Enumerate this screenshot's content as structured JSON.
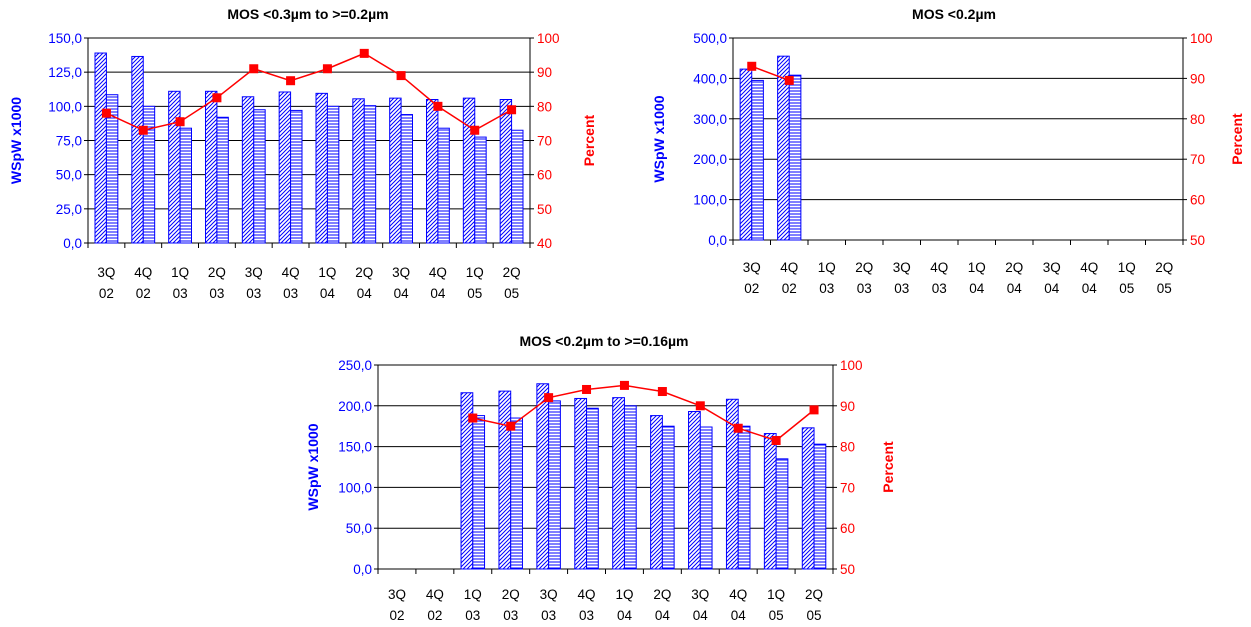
{
  "colors": {
    "bar_stroke": "#0000ff",
    "bar_fill": "#ffffff",
    "line": "#ff0000",
    "marker": "#ff0000",
    "axis": "#000000",
    "grid": "#000000"
  },
  "chart_data": [
    {
      "type": "bar",
      "title": "MOS <0.3µm to >=0.2µm",
      "ylabel": "WSpW x1000",
      "y2label": "Percent",
      "ylim": [
        0,
        150
      ],
      "yticks": [
        "0,0",
        "25,0",
        "50,0",
        "75,0",
        "100,0",
        "125,0",
        "150,0"
      ],
      "y2lim": [
        40,
        100
      ],
      "y2ticks": [
        "40",
        "50",
        "60",
        "70",
        "80",
        "90",
        "100"
      ],
      "categories": [
        "3Q 02",
        "4Q 02",
        "1Q 03",
        "2Q 03",
        "3Q 03",
        "4Q 03",
        "1Q 04",
        "2Q 04",
        "3Q 04",
        "4Q 04",
        "1Q 05",
        "2Q 05"
      ],
      "grid": true,
      "series": [
        {
          "kind": "bar",
          "pattern": "diagonal",
          "values": [
            139,
            136.5,
            111,
            111,
            107,
            110.5,
            109.5,
            105.5,
            106,
            105,
            106,
            105
          ]
        },
        {
          "kind": "bar",
          "pattern": "horizontal",
          "values": [
            108.5,
            100,
            84,
            92,
            97.5,
            97,
            100,
            100.5,
            94,
            84,
            77.5,
            82.5
          ]
        },
        {
          "kind": "line",
          "axis": "right",
          "values": [
            78,
            73,
            75.5,
            82.5,
            91,
            87.5,
            91,
            95.5,
            89,
            80,
            73,
            79
          ]
        }
      ]
    },
    {
      "type": "bar",
      "title": "MOS <0.2µm",
      "ylabel": "WSpW x1000",
      "y2label": "Percent",
      "ylim": [
        0,
        500
      ],
      "yticks": [
        "0,0",
        "100,0",
        "200,0",
        "300,0",
        "400,0",
        "500,0"
      ],
      "y2lim": [
        50,
        100
      ],
      "y2ticks": [
        "50",
        "60",
        "70",
        "80",
        "90",
        "100"
      ],
      "categories": [
        "3Q 02",
        "4Q 02",
        "1Q 03",
        "2Q 03",
        "3Q 03",
        "4Q 03",
        "1Q 04",
        "2Q 04",
        "3Q 04",
        "4Q 04",
        "1Q 05",
        "2Q 05"
      ],
      "grid": true,
      "series": [
        {
          "kind": "bar",
          "pattern": "diagonal",
          "values": [
            423,
            455,
            null,
            null,
            null,
            null,
            null,
            null,
            null,
            null,
            null,
            null
          ]
        },
        {
          "kind": "bar",
          "pattern": "horizontal",
          "values": [
            395,
            408,
            null,
            null,
            null,
            null,
            null,
            null,
            null,
            null,
            null,
            null
          ]
        },
        {
          "kind": "line",
          "axis": "right",
          "values": [
            93,
            89.5,
            null,
            null,
            null,
            null,
            null,
            null,
            null,
            null,
            null,
            null
          ]
        }
      ]
    },
    {
      "type": "bar",
      "title": "MOS <0.2µm to >=0.16µm",
      "ylabel": "WSpW x1000",
      "y2label": "Percent",
      "ylim": [
        0,
        250
      ],
      "yticks": [
        "0,0",
        "50,0",
        "100,0",
        "150,0",
        "200,0",
        "250,0"
      ],
      "y2lim": [
        50,
        100
      ],
      "y2ticks": [
        "50",
        "60",
        "70",
        "80",
        "90",
        "100"
      ],
      "categories": [
        "3Q 02",
        "4Q 02",
        "1Q 03",
        "2Q 03",
        "3Q 03",
        "4Q 03",
        "1Q 04",
        "2Q 04",
        "3Q 04",
        "4Q 04",
        "1Q 05",
        "2Q 05"
      ],
      "grid": true,
      "series": [
        {
          "kind": "bar",
          "pattern": "diagonal",
          "values": [
            null,
            null,
            216,
            218,
            227,
            209,
            210,
            188,
            193,
            208,
            166,
            173
          ]
        },
        {
          "kind": "bar",
          "pattern": "horizontal",
          "values": [
            null,
            null,
            188,
            185,
            206,
            197,
            200,
            175,
            174,
            175,
            135,
            153
          ]
        },
        {
          "kind": "line",
          "axis": "right",
          "values": [
            null,
            null,
            87,
            85,
            92,
            94,
            95,
            93.5,
            90,
            84.5,
            81.5,
            89
          ]
        }
      ]
    }
  ]
}
